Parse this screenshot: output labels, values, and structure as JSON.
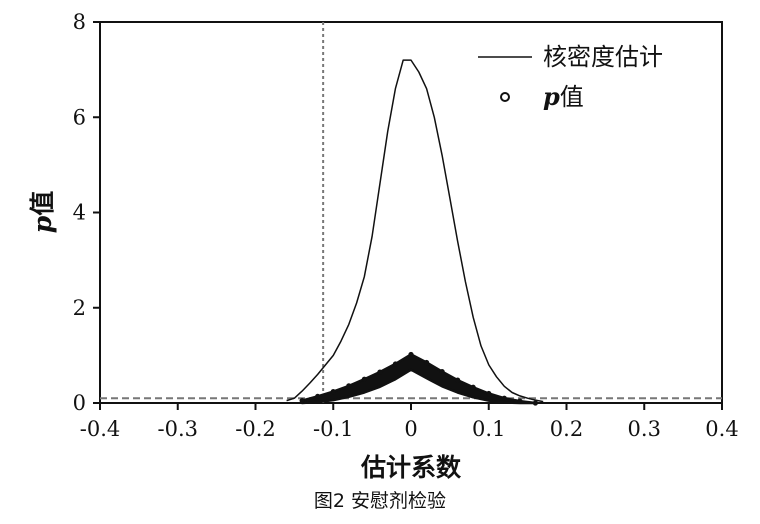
{
  "caption": "图2  安慰剂检验",
  "chart_data": {
    "type": "line",
    "xlabel": "估计系数",
    "ylabel": {
      "italic": "p",
      "rest": "值"
    },
    "xlim": [
      -0.4,
      0.4
    ],
    "ylim": [
      0,
      8
    ],
    "xticks": [
      "-0.4",
      "-0.3",
      "-0.2",
      "-0.1",
      "0",
      "0.1",
      "0.2",
      "0.3",
      "0.4"
    ],
    "xtick_values": [
      -0.4,
      -0.3,
      -0.2,
      -0.1,
      0,
      0.1,
      0.2,
      0.3,
      0.4
    ],
    "yticks": [
      "0",
      "2",
      "4",
      "6",
      "8"
    ],
    "ytick_values": [
      0,
      2,
      4,
      6,
      8
    ],
    "grid": false,
    "legend_position": "top-right",
    "legend": [
      {
        "label": "核密度估计",
        "marker": "line"
      },
      {
        "label_italic": "p",
        "label_rest": "值",
        "marker": "hollow-circle"
      }
    ],
    "reference_lines": [
      {
        "orientation": "vertical",
        "x": -0.113,
        "style": "dotted"
      },
      {
        "orientation": "horizontal",
        "y": 0.1,
        "style": "dashed"
      }
    ],
    "series": [
      {
        "name": "核密度估计",
        "kind": "line",
        "x": [
          -0.16,
          -0.15,
          -0.14,
          -0.13,
          -0.12,
          -0.11,
          -0.1,
          -0.09,
          -0.08,
          -0.07,
          -0.06,
          -0.05,
          -0.04,
          -0.03,
          -0.02,
          -0.01,
          0.0,
          0.01,
          0.02,
          0.03,
          0.04,
          0.05,
          0.06,
          0.07,
          0.08,
          0.09,
          0.1,
          0.11,
          0.12,
          0.13,
          0.14,
          0.15,
          0.16,
          0.17
        ],
        "y": [
          0.05,
          0.1,
          0.25,
          0.42,
          0.6,
          0.8,
          1.0,
          1.3,
          1.65,
          2.1,
          2.65,
          3.5,
          4.6,
          5.7,
          6.6,
          7.2,
          7.2,
          6.95,
          6.6,
          6.0,
          5.2,
          4.3,
          3.4,
          2.55,
          1.8,
          1.2,
          0.8,
          0.55,
          0.35,
          0.22,
          0.15,
          0.1,
          0.06,
          0.03
        ]
      },
      {
        "name": "p值",
        "kind": "scatter-envelope",
        "x": [
          -0.14,
          -0.12,
          -0.1,
          -0.08,
          -0.06,
          -0.04,
          -0.02,
          0.0,
          0.02,
          0.04,
          0.06,
          0.08,
          0.1,
          0.12,
          0.14,
          0.16
        ],
        "upper": [
          0.05,
          0.14,
          0.24,
          0.36,
          0.5,
          0.65,
          0.82,
          1.02,
          0.85,
          0.66,
          0.48,
          0.33,
          0.2,
          0.1,
          0.04,
          0.0
        ],
        "lower": [
          0.0,
          0.02,
          0.06,
          0.13,
          0.22,
          0.34,
          0.5,
          0.7,
          0.52,
          0.35,
          0.22,
          0.12,
          0.05,
          0.01,
          0.0,
          0.0
        ]
      }
    ]
  }
}
